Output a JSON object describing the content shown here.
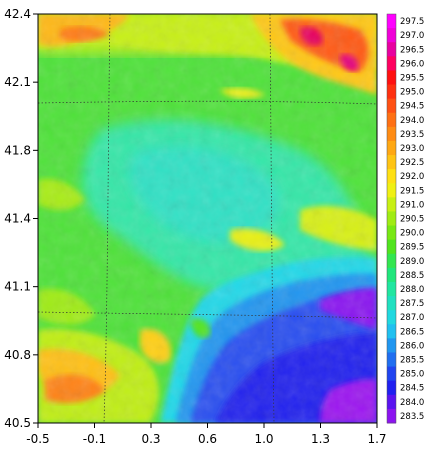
{
  "chart_data": {
    "type": "heatmap",
    "x_ticks": [
      "-0.5",
      "-0.1",
      "0.3",
      "0.6",
      "1.0",
      "1.3",
      "1.7"
    ],
    "y_ticks": [
      "42.4",
      "42.1",
      "41.8",
      "41.4",
      "41.1",
      "40.8",
      "40.5"
    ],
    "xlim": [
      -0.5,
      1.7
    ],
    "ylim": [
      40.5,
      42.4
    ],
    "colorbar_ticks": [
      "297.5",
      "297.0",
      "296.5",
      "296.0",
      "295.5",
      "295.0",
      "294.5",
      "294.0",
      "293.5",
      "293.0",
      "292.5",
      "292.0",
      "291.5",
      "291.0",
      "290.5",
      "290.0",
      "289.5",
      "289.0",
      "288.5",
      "288.0",
      "287.5",
      "287.0",
      "286.5",
      "286.0",
      "285.5",
      "285.0",
      "284.5",
      "284.0",
      "283.5"
    ],
    "colorbar_colors": [
      "#ff00ff",
      "#f000d8",
      "#e800a0",
      "#ff0060",
      "#ff1010",
      "#ff3010",
      "#ff5014",
      "#ff7014",
      "#ff8c14",
      "#ffa814",
      "#ffc414",
      "#ffe014",
      "#f0f014",
      "#c8f014",
      "#a0ec14",
      "#78e814",
      "#50e41e",
      "#32e650",
      "#20e67c",
      "#20e6a0",
      "#20e0c0",
      "#20d8e0",
      "#20c0f0",
      "#2096f0",
      "#206ef0",
      "#2044f0",
      "#2020f0",
      "#5a14f0",
      "#8c14f0"
    ],
    "colorbar_range": [
      283.5,
      297.5
    ],
    "grid": true,
    "colorbar_position": "right",
    "field_note": "Gridded temperature field: warm values (up to ~297) along the top-right and top-left edges and lower-left corner; cool values (~284) in the bottom-right region; ~289-291 across the center."
  }
}
